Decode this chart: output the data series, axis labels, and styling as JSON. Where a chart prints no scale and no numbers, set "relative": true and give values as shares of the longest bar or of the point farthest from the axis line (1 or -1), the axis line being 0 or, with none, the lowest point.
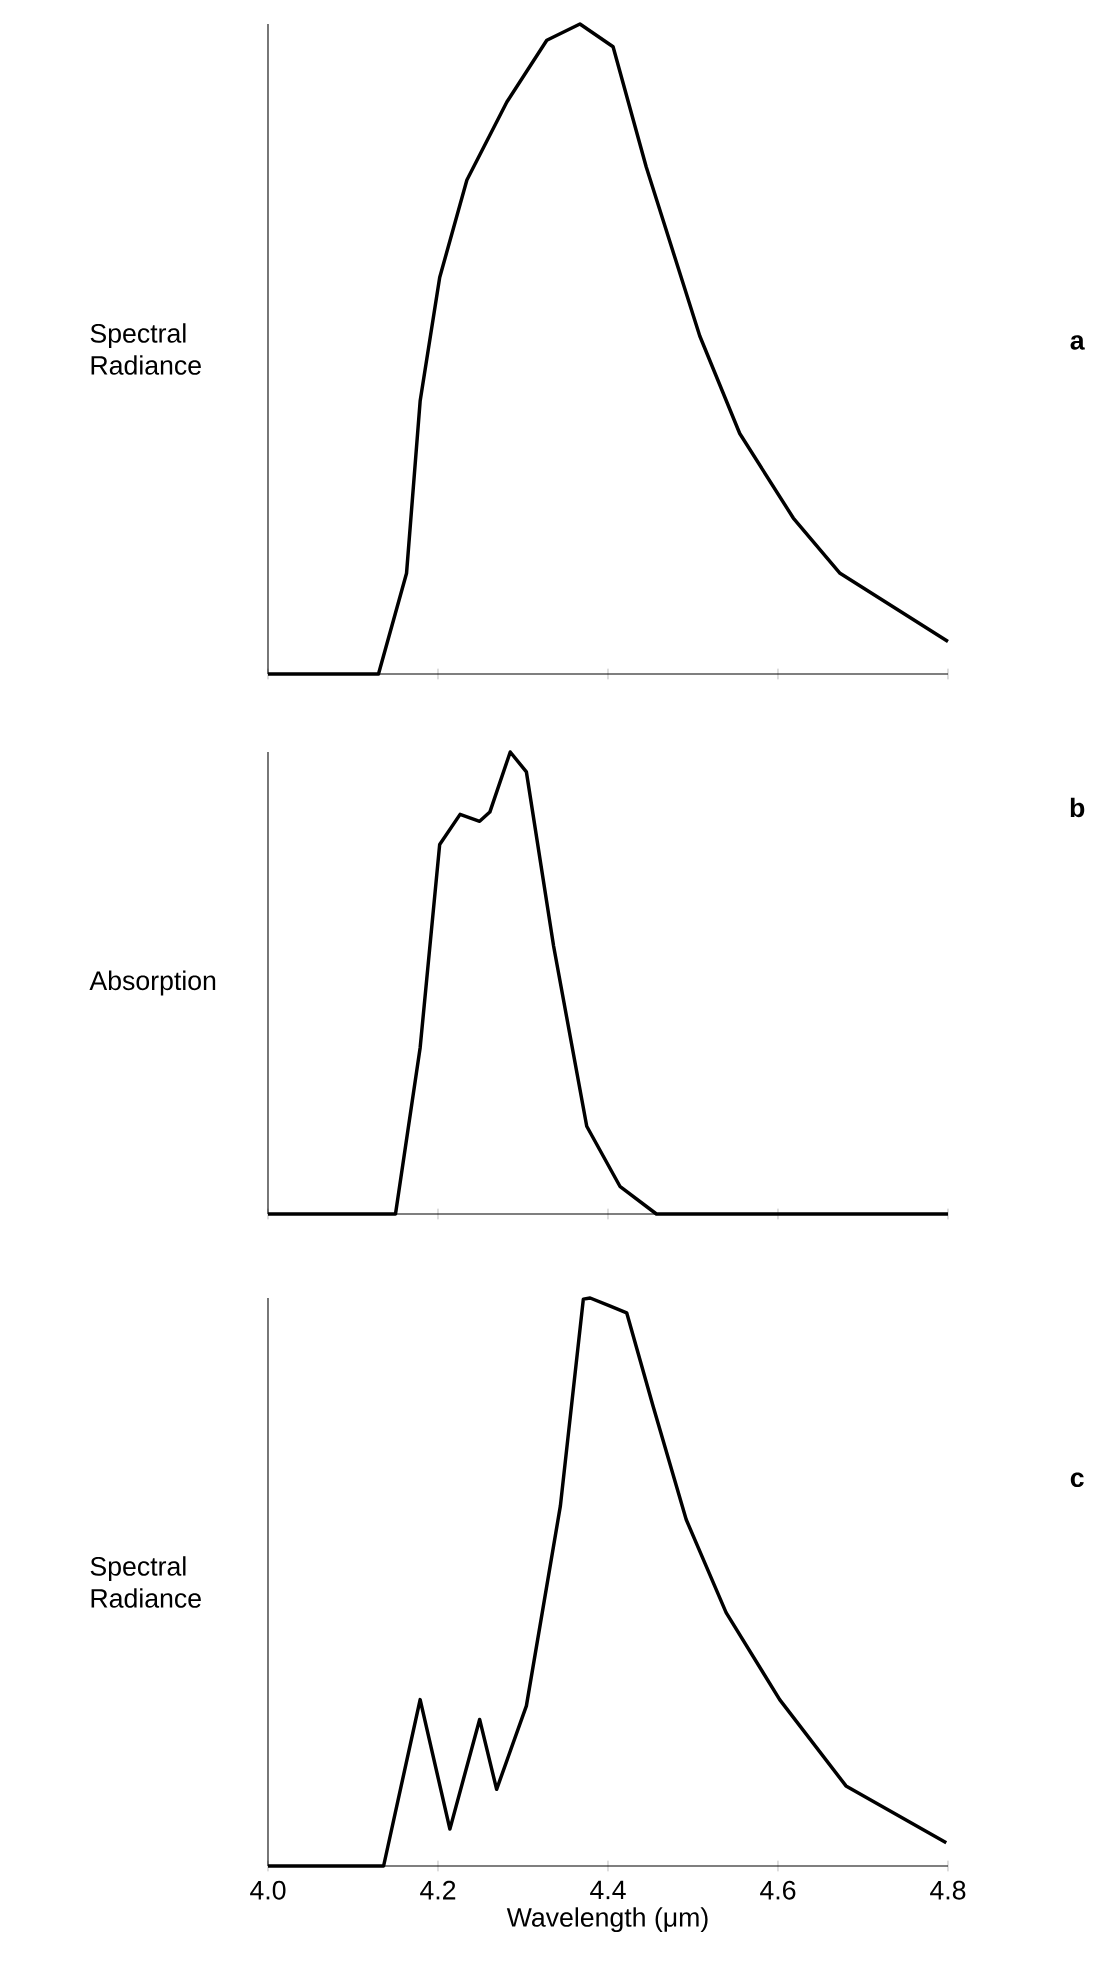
{
  "chart_data": [
    {
      "type": "line",
      "ylabel": "Spectral Radiance",
      "annotations": [
        "a"
      ],
      "relative": true,
      "xlim": [
        4.0,
        4.8
      ],
      "xticks": [
        4.0,
        4.2,
        4.4,
        4.6,
        4.8
      ],
      "tick_labels": false,
      "color": "#000000",
      "x": [
        4.0,
        4.13,
        4.163,
        4.179,
        4.202,
        4.234,
        4.281,
        4.328,
        4.367,
        4.406,
        4.445,
        4.508,
        4.555,
        4.618,
        4.673,
        4.8
      ],
      "values": [
        0,
        0,
        0.155,
        0.42,
        0.61,
        0.76,
        0.88,
        0.975,
        1.0,
        0.965,
        0.78,
        0.52,
        0.37,
        0.24,
        0.155,
        0.05
      ]
    },
    {
      "type": "line",
      "ylabel": "Absorption",
      "annotations": [
        "b"
      ],
      "relative": true,
      "xlim": [
        4.0,
        4.8
      ],
      "xticks": [
        4.0,
        4.2,
        4.4,
        4.6,
        4.8
      ],
      "tick_labels": false,
      "color": "#000000",
      "x": [
        4.0,
        4.15,
        4.179,
        4.202,
        4.226,
        4.249,
        4.261,
        4.285,
        4.304,
        4.336,
        4.375,
        4.414,
        4.457,
        4.8
      ],
      "values": [
        0,
        0,
        0.36,
        0.8,
        0.865,
        0.85,
        0.87,
        1.0,
        0.957,
        0.58,
        0.19,
        0.06,
        0,
        0
      ]
    },
    {
      "type": "line",
      "ylabel": "Spectral Radiance",
      "xlabel": "Wavelength (μm)",
      "annotations": [
        "c"
      ],
      "relative": true,
      "xlim": [
        4.0,
        4.8
      ],
      "xticks": [
        {
          "value": 4.0,
          "label": "4.0"
        },
        4.2,
        4.4,
        4.6,
        4.8
      ],
      "tick_labels": "x",
      "color": "#000000",
      "x": [
        4.0,
        4.136,
        4.179,
        4.214,
        4.249,
        4.269,
        4.304,
        4.344,
        4.371,
        4.379,
        4.402,
        4.422,
        4.453,
        4.492,
        4.539,
        4.602,
        4.68,
        4.798
      ],
      "values": [
        0,
        0,
        0.293,
        0.065,
        0.258,
        0.135,
        0.282,
        0.634,
        0.998,
        1.0,
        0.986,
        0.974,
        0.81,
        0.61,
        0.446,
        0.293,
        0.141,
        0.041
      ]
    }
  ]
}
